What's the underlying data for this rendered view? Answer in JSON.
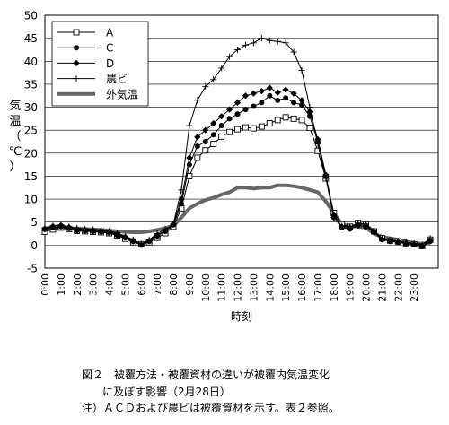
{
  "chart_data": {
    "type": "line",
    "title": "",
    "ylabel": "気温（℃）",
    "xlabel": "時刻",
    "ylim": [
      -5,
      50
    ],
    "yticks": [
      -5,
      0,
      5,
      10,
      15,
      20,
      25,
      30,
      35,
      40,
      45,
      50
    ],
    "x_hours": [
      0,
      0.5,
      1,
      1.5,
      2,
      2.5,
      3,
      3.5,
      4,
      4.5,
      5,
      5.5,
      6,
      6.5,
      7,
      7.5,
      8,
      8.5,
      9,
      9.5,
      10,
      10.5,
      11,
      11.5,
      12,
      12.5,
      13,
      13.5,
      14,
      14.5,
      15,
      15.5,
      16,
      16.5,
      17,
      17.5,
      18,
      18.5,
      19,
      19.5,
      20,
      20.5,
      21,
      21.5,
      22,
      22.5,
      23,
      23.5,
      24
    ],
    "x_tick_labels": [
      "0:00",
      "1:00",
      "2:00",
      "3:00",
      "4:00",
      "5:00",
      "6:00",
      "7:00",
      "8:00",
      "9:00",
      "10:00",
      "11:00",
      "12:00",
      "13:00",
      "14:00",
      "15:00",
      "16:00",
      "17:00",
      "18:00",
      "19:00",
      "20:00",
      "21:00",
      "22:00",
      "23:00"
    ],
    "grid": true,
    "legend_placement": "top-left",
    "series": [
      {
        "name": "A",
        "marker": "open-square",
        "width": 1,
        "values": [
          2.9,
          3.4,
          3.8,
          3.5,
          3.1,
          3.0,
          2.9,
          2.8,
          2.6,
          2.1,
          1.4,
          0.6,
          0.2,
          0.6,
          1.6,
          2.6,
          4.0,
          8.0,
          15.0,
          19.0,
          20.6,
          22.0,
          23.6,
          24.6,
          25.2,
          25.6,
          25.4,
          25.8,
          26.5,
          27.2,
          27.8,
          27.5,
          27.2,
          25.5,
          20.5,
          14.5,
          7.0,
          4.5,
          4.0,
          4.8,
          4.5,
          3.0,
          1.5,
          1.0,
          0.8,
          0.4,
          0.2,
          -0.2,
          1.2
        ]
      },
      {
        "name": "C",
        "marker": "filled-circle",
        "width": 1,
        "values": [
          3.4,
          3.8,
          4.0,
          3.6,
          3.2,
          3.1,
          3.0,
          2.9,
          2.7,
          2.2,
          1.6,
          0.8,
          0.0,
          0.8,
          2.0,
          3.0,
          4.4,
          9.0,
          17.5,
          21.5,
          22.5,
          24.0,
          26.0,
          27.5,
          28.5,
          29.5,
          30.2,
          31.0,
          32.5,
          31.5,
          32.0,
          31.0,
          30.5,
          28.0,
          22.5,
          15.0,
          6.0,
          3.8,
          3.5,
          4.2,
          4.0,
          2.8,
          1.2,
          0.8,
          0.6,
          0.3,
          0.1,
          -0.3,
          0.8
        ]
      },
      {
        "name": "D",
        "marker": "filled-diamond",
        "width": 1,
        "values": [
          3.6,
          4.1,
          4.3,
          3.9,
          3.5,
          3.3,
          3.2,
          3.1,
          2.9,
          2.4,
          1.8,
          1.0,
          0.1,
          1.0,
          2.2,
          3.2,
          4.6,
          10.0,
          19.0,
          23.5,
          25.0,
          26.5,
          28.0,
          29.5,
          31.0,
          32.5,
          33.0,
          33.5,
          34.2,
          33.2,
          33.8,
          33.0,
          31.5,
          29.0,
          23.0,
          15.3,
          6.5,
          4.0,
          3.8,
          4.5,
          4.3,
          3.0,
          1.3,
          0.9,
          0.7,
          0.4,
          0.2,
          -0.2,
          0.9
        ]
      },
      {
        "name": "農ビ",
        "marker": "plus",
        "width": 1,
        "values": [
          3.8,
          4.2,
          4.4,
          4.0,
          3.7,
          3.5,
          3.4,
          3.3,
          3.1,
          2.6,
          2.0,
          1.2,
          0.3,
          1.2,
          2.5,
          3.5,
          4.5,
          12.0,
          26.0,
          31.5,
          34.5,
          36.0,
          38.5,
          41.0,
          42.5,
          43.5,
          44.0,
          45.0,
          44.5,
          44.3,
          44.0,
          42.0,
          38.0,
          30.0,
          22.0,
          14.5,
          6.0,
          4.2,
          4.0,
          4.8,
          4.6,
          3.2,
          1.5,
          1.1,
          0.9,
          0.6,
          0.4,
          0.1,
          1.5
        ]
      },
      {
        "name": "外気温",
        "marker": "none",
        "width": 4,
        "values": [
          3.5,
          3.6,
          3.7,
          3.6,
          3.6,
          3.5,
          3.4,
          3.3,
          3.2,
          3.0,
          2.9,
          2.8,
          2.8,
          3.0,
          3.3,
          3.7,
          4.2,
          6.0,
          8.0,
          9.0,
          9.8,
          10.3,
          11.0,
          11.5,
          12.5,
          12.5,
          12.3,
          12.5,
          12.5,
          13.0,
          13.0,
          12.8,
          12.5,
          12.0,
          11.5,
          9.5,
          7.0,
          4.5,
          4.2,
          4.0,
          3.8,
          2.5,
          1.8,
          1.5,
          1.2,
          0.8,
          0.5,
          0.3,
          0.5
        ]
      }
    ]
  },
  "caption": {
    "line1": "図２　被覆方法・被覆資材の違いが被覆内気温変化",
    "line2": "に及ぼす影響（2月28日）",
    "line3": "注）ＡＣＤおよび農ビは被覆資材を示す。表２参照。"
  }
}
